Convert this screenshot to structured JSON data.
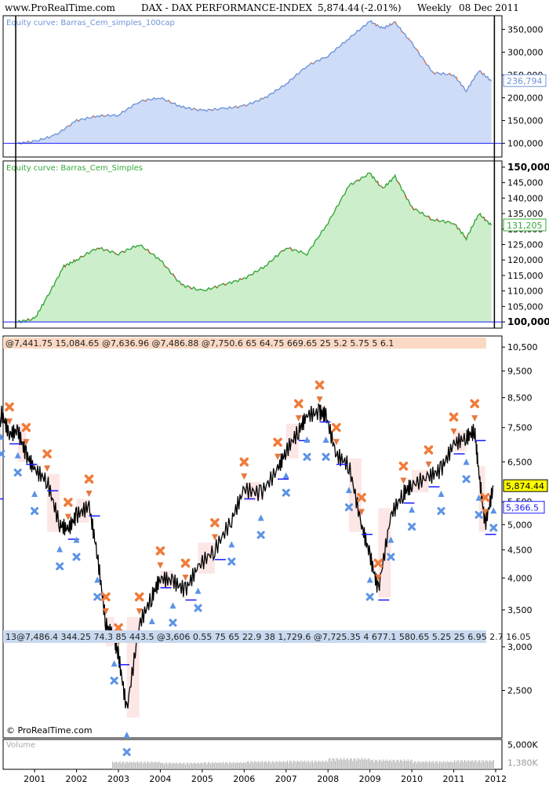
{
  "header": {
    "site": "www.ProRealTime.com",
    "instrument": "DAX - DAX PERFORMANCE-INDEX",
    "price": "5,874.44",
    "change": "(-2.01%)",
    "period": "Weekly",
    "date": "08 Dec 2011"
  },
  "footer": {
    "copyright": "© ProRealTime.com"
  },
  "colors": {
    "panel1_fill": "#cfdcf7",
    "panel1_line": "#6e95d8",
    "panel1_accent": "#e8773d",
    "panel2_fill": "#cdeecb",
    "panel2_line": "#36a83a",
    "panel2_accent": "#d24b3a",
    "price_line": "#000000",
    "level": "#1a1aff",
    "cross": "#f07b3a",
    "arrow_up": "#5b93e6",
    "arrow_down": "#e8773d",
    "x_mark": "#5b93e6",
    "price_badge": "#ffff00"
  },
  "chart_data": [
    {
      "type": "area",
      "title": "Equity curve: Barras_Cem_simples_100cap",
      "yticks": [
        "350,000",
        "300,000",
        "250,000",
        "200,000",
        "150,000",
        "100,000"
      ],
      "ytick_values": [
        350000,
        300000,
        250000,
        200000,
        150000,
        100000
      ],
      "ylim": [
        70000,
        380000
      ],
      "last_value_label": "236,794",
      "baseline": 100000,
      "x": [
        2000.6,
        2001.0,
        2001.5,
        2002.0,
        2002.5,
        2003.0,
        2003.5,
        2004.0,
        2004.5,
        2005.0,
        2005.5,
        2006.0,
        2006.5,
        2007.0,
        2007.5,
        2008.0,
        2008.5,
        2009.0,
        2009.3,
        2009.6,
        2010.0,
        2010.5,
        2011.0,
        2011.3,
        2011.6,
        2011.9
      ],
      "values": [
        100000,
        104000,
        118000,
        150000,
        160000,
        162000,
        192000,
        200000,
        180000,
        172000,
        176000,
        182000,
        200000,
        230000,
        270000,
        292000,
        330000,
        368000,
        352000,
        365000,
        320000,
        255000,
        250000,
        215000,
        260000,
        236794
      ]
    },
    {
      "type": "area",
      "title": "Equity curve: Barras_Cem_Simples",
      "yticks": [
        "150,000",
        "145,000",
        "140,000",
        "135,000",
        "130,000",
        "125,000",
        "120,000",
        "115,000",
        "110,000",
        "105,000",
        "100,000"
      ],
      "ytick_values": [
        150000,
        145000,
        140000,
        135000,
        130000,
        125000,
        120000,
        115000,
        110000,
        105000,
        100000
      ],
      "ylim": [
        98000,
        152000
      ],
      "last_value_label": "131,205",
      "baseline": 100000,
      "x": [
        2000.6,
        2001.0,
        2001.3,
        2001.7,
        2002.0,
        2002.5,
        2003.0,
        2003.5,
        2004.0,
        2004.5,
        2005.0,
        2005.5,
        2006.0,
        2006.5,
        2007.0,
        2007.5,
        2008.0,
        2008.5,
        2009.0,
        2009.3,
        2009.6,
        2010.0,
        2010.5,
        2011.0,
        2011.3,
        2011.6,
        2011.9
      ],
      "values": [
        100000,
        101000,
        108000,
        118000,
        120000,
        124000,
        122000,
        125000,
        120000,
        112000,
        110000,
        112000,
        114000,
        118000,
        124000,
        122000,
        132000,
        144000,
        148000,
        143000,
        147000,
        137000,
        133000,
        132000,
        127000,
        135000,
        131205
      ]
    },
    {
      "type": "line",
      "title": "",
      "scale": "log",
      "yticks": [
        "10,500",
        "9,500",
        "8,500",
        "7,500",
        "6,500",
        "5,500",
        "5,000",
        "4,500",
        "4,000",
        "3,500",
        "3,000",
        "2,500"
      ],
      "ytick_values": [
        10500,
        9500,
        8500,
        7500,
        6500,
        5500,
        5000,
        4500,
        4000,
        3500,
        3000,
        2500
      ],
      "ylim": [
        2050,
        11000
      ],
      "price_label": "5,874.44",
      "level_label": "5,366.5",
      "x": [
        2000.0,
        2000.2,
        2000.4,
        2000.6,
        2000.8,
        2001.0,
        2001.3,
        2001.6,
        2001.8,
        2002.0,
        2002.3,
        2002.5,
        2002.7,
        2002.9,
        2003.0,
        2003.2,
        2003.5,
        2003.8,
        2004.0,
        2004.3,
        2004.6,
        2004.9,
        2005.3,
        2005.7,
        2006.0,
        2006.4,
        2006.8,
        2007.0,
        2007.3,
        2007.5,
        2007.8,
        2007.95,
        2008.2,
        2008.5,
        2008.8,
        2009.0,
        2009.2,
        2009.5,
        2009.8,
        2010.0,
        2010.4,
        2010.7,
        2011.0,
        2011.3,
        2011.5,
        2011.6,
        2011.75,
        2011.95
      ],
      "values": [
        5800,
        8000,
        7300,
        7400,
        6700,
        6300,
        6000,
        5000,
        4900,
        5200,
        5400,
        4400,
        3300,
        3100,
        2900,
        2300,
        3300,
        3700,
        4000,
        3950,
        3800,
        4200,
        4500,
        5100,
        5800,
        5700,
        6300,
        6800,
        7400,
        7900,
        8000,
        7900,
        6700,
        6400,
        5000,
        4400,
        3800,
        5200,
        5700,
        5900,
        6100,
        6300,
        7000,
        7200,
        7400,
        6200,
        5000,
        5874.44
      ],
      "overlay_top": [
        "@7,441.75",
        "15,084.65",
        "@7,636.96",
        "@7,486.88",
        "@7,750.6",
        "65",
        "64.75",
        "669.65",
        "25",
        "5.2",
        "5.75",
        "5",
        "6.1"
      ],
      "overlay_bottom": [
        "13@7,486.4",
        "344.25",
        "74.3",
        "85",
        "443.5",
        "@3,606",
        "0.55",
        "75",
        "65",
        "22.9",
        "38",
        "1,729.6",
        "@7,725.35",
        "4",
        "677.1",
        "580.65",
        "5.25",
        "25",
        "6.95",
        "2.7",
        "16.05"
      ]
    },
    {
      "type": "bar",
      "title": "Volume",
      "yticks": [
        "5,000K"
      ],
      "last_value_label": "1,380K",
      "ylim": [
        0,
        6000
      ],
      "x": [
        2003.0,
        2004.0,
        2005.0,
        2006.0,
        2007.0,
        2008.0,
        2009.0,
        2010.0,
        2011.0,
        2011.9
      ],
      "values": [
        1600,
        1400,
        1500,
        1700,
        1800,
        2300,
        2000,
        1700,
        1900,
        1380
      ]
    }
  ],
  "x_axis": {
    "labels": [
      "2001",
      "2002",
      "2003",
      "2004",
      "2005",
      "2006",
      "2007",
      "2008",
      "2009",
      "2010",
      "2011",
      "2012"
    ],
    "label_values": [
      2001,
      2002,
      2003,
      2004,
      2005,
      2006,
      2007,
      2008,
      2009,
      2010,
      2011,
      2012
    ]
  }
}
